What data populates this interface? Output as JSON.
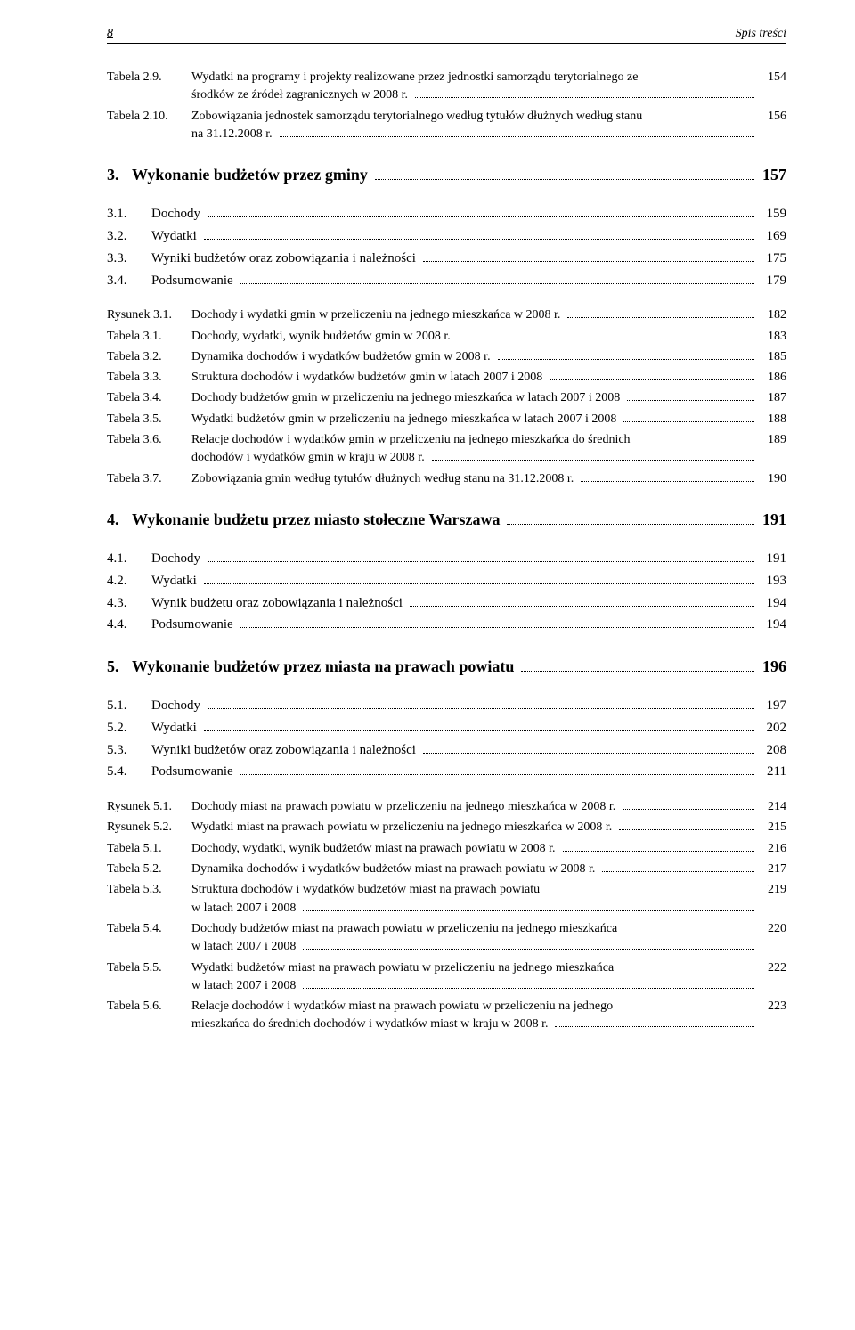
{
  "header": {
    "page_number": "8",
    "running_title": "Spis treści"
  },
  "tables_top": [
    {
      "label": "Tabela 2.9.",
      "title_l1": "Wydatki na programy i projekty realizowane przez jednostki samorządu terytorialnego ze",
      "title_l2": "środków ze źródeł zagranicznych w 2008 r.",
      "page": "154"
    },
    {
      "label": "Tabela 2.10.",
      "title_l1": "Zobowiązania jednostek samorządu terytorialnego według tytułów dłużnych według stanu",
      "title_l2": "na 31.12.2008 r.",
      "page": "156"
    }
  ],
  "sec3": {
    "num": "3.",
    "title": "Wykonanie budżetów przez gminy",
    "page": "157"
  },
  "sec3_sub": [
    {
      "num": "3.1.",
      "title": "Dochody",
      "page": "159"
    },
    {
      "num": "3.2.",
      "title": "Wydatki",
      "page": "169"
    },
    {
      "num": "3.3.",
      "title": "Wyniki budżetów oraz zobowiązania i należności",
      "page": "175"
    },
    {
      "num": "3.4.",
      "title": "Podsumowanie",
      "page": "179"
    }
  ],
  "sec3_tables": [
    {
      "label": "Rysunek 3.1.",
      "title": "Dochody i wydatki gmin w przeliczeniu na jednego mieszkańca w 2008 r.",
      "page": "182"
    },
    {
      "label": "Tabela 3.1.",
      "title": "Dochody, wydatki, wynik budżetów gmin w 2008 r.",
      "page": "183"
    },
    {
      "label": "Tabela 3.2.",
      "title": "Dynamika dochodów i wydatków budżetów gmin w 2008 r.",
      "page": "185"
    },
    {
      "label": "Tabela 3.3.",
      "title": "Struktura dochodów i wydatków budżetów gmin w latach 2007 i 2008",
      "page": "186"
    },
    {
      "label": "Tabela 3.4.",
      "title": "Dochody budżetów gmin w przeliczeniu na jednego mieszkańca w latach 2007 i 2008",
      "page": "187"
    },
    {
      "label": "Tabela 3.5.",
      "title": "Wydatki budżetów gmin w przeliczeniu na jednego mieszkańca w latach 2007 i 2008",
      "page": "188"
    },
    {
      "label": "Tabela 3.6.",
      "title_l1": "Relacje dochodów i wydatków gmin w przeliczeniu na jednego mieszkańca do średnich",
      "title_l2": "dochodów i wydatków gmin w kraju w 2008 r.",
      "page": "189"
    },
    {
      "label": "Tabela 3.7.",
      "title": "Zobowiązania gmin według tytułów dłużnych według stanu na 31.12.2008 r.",
      "page": "190"
    }
  ],
  "sec4": {
    "num": "4.",
    "title": "Wykonanie budżetu przez miasto stołeczne Warszawa",
    "page": "191"
  },
  "sec4_sub": [
    {
      "num": "4.1.",
      "title": "Dochody",
      "page": "191"
    },
    {
      "num": "4.2.",
      "title": "Wydatki",
      "page": "193"
    },
    {
      "num": "4.3.",
      "title": "Wynik budżetu oraz zobowiązania i należności",
      "page": "194"
    },
    {
      "num": "4.4.",
      "title": "Podsumowanie",
      "page": "194"
    }
  ],
  "sec5": {
    "num": "5.",
    "title": "Wykonanie budżetów przez miasta na prawach powiatu",
    "page": "196"
  },
  "sec5_sub": [
    {
      "num": "5.1.",
      "title": "Dochody",
      "page": "197"
    },
    {
      "num": "5.2.",
      "title": "Wydatki",
      "page": "202"
    },
    {
      "num": "5.3.",
      "title": "Wyniki budżetów oraz zobowiązania i należności",
      "page": "208"
    },
    {
      "num": "5.4.",
      "title": "Podsumowanie",
      "page": "211"
    }
  ],
  "sec5_tables": [
    {
      "label": "Rysunek 5.1.",
      "title": "Dochody miast na prawach powiatu w przeliczeniu na jednego mieszkańca w 2008 r.",
      "page": "214"
    },
    {
      "label": "Rysunek 5.2.",
      "title": "Wydatki miast na prawach powiatu w przeliczeniu na jednego mieszkańca w 2008 r.",
      "page": "215"
    },
    {
      "label": "Tabela 5.1.",
      "title": "Dochody, wydatki, wynik budżetów miast na prawach powiatu w 2008 r.",
      "page": "216"
    },
    {
      "label": "Tabela 5.2.",
      "title": "Dynamika dochodów i wydatków budżetów miast na prawach powiatu w 2008 r.",
      "page": "217"
    },
    {
      "label": "Tabela 5.3.",
      "title_l1": "Struktura dochodów i wydatków budżetów miast na prawach powiatu",
      "title_l2": "w latach 2007 i 2008",
      "page": "219"
    },
    {
      "label": "Tabela 5.4.",
      "title_l1": "Dochody budżetów miast na prawach powiatu w przeliczeniu na jednego mieszkańca",
      "title_l2": "w latach 2007 i 2008",
      "page": "220"
    },
    {
      "label": "Tabela 5.5.",
      "title_l1": "Wydatki budżetów miast na prawach powiatu w przeliczeniu na jednego mieszkańca",
      "title_l2": "w latach 2007 i 2008",
      "page": "222"
    },
    {
      "label": "Tabela 5.6.",
      "title_l1": "Relacje dochodów i wydatków miast na prawach powiatu w przeliczeniu na jednego",
      "title_l2": "mieszkańca do średnich dochodów i wydatków miast w kraju w 2008 r.",
      "page": "223"
    }
  ]
}
